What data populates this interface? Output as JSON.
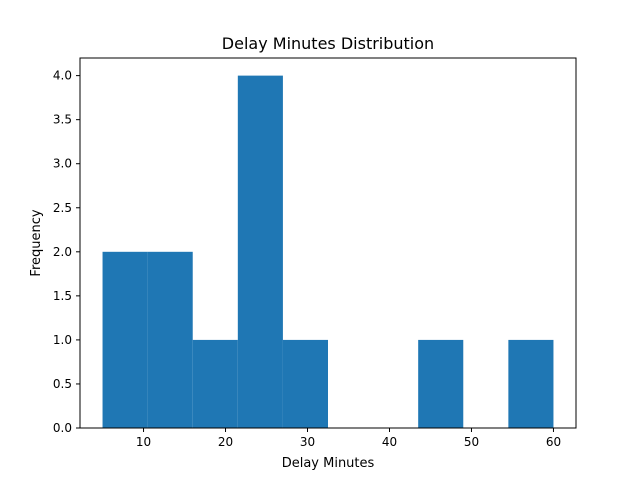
{
  "chart_data": {
    "type": "bar",
    "title": "Delay Minutes Distribution",
    "xlabel": "Delay Minutes",
    "ylabel": "Frequency",
    "xlim": [
      2.25,
      62.75
    ],
    "ylim": [
      0,
      4.2
    ],
    "xticks": [
      10,
      20,
      30,
      40,
      50,
      60
    ],
    "yticks": [
      0.0,
      0.5,
      1.0,
      1.5,
      2.0,
      2.5,
      3.0,
      3.5,
      4.0
    ],
    "bin_edges": [
      5,
      10.5,
      16,
      21.5,
      27,
      32.5,
      38,
      43.5,
      49,
      54.5,
      60
    ],
    "values": [
      2,
      2,
      1,
      4,
      1,
      0,
      0,
      1,
      0,
      1
    ],
    "bar_color": "#1f77b4",
    "grid": false
  }
}
